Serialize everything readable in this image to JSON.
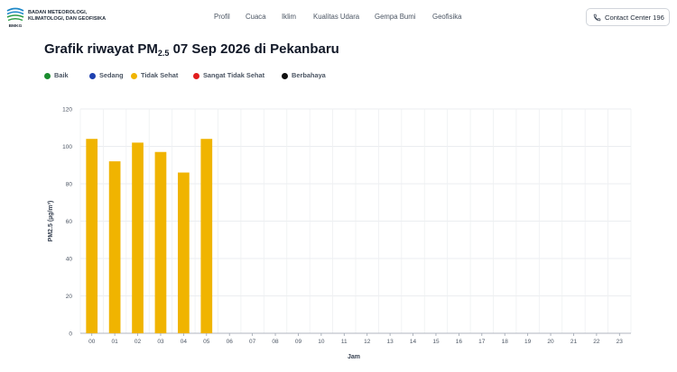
{
  "header": {
    "org_lines": [
      "BADAN METEOROLOGI,",
      "KLIMATOLOGI, DAN GEOFISIKA"
    ],
    "logo_text": "BMKG",
    "nav": [
      "Profil",
      "Cuaca",
      "Iklim",
      "Kualitas Udara",
      "Gempa Bumi",
      "Geofisika"
    ],
    "contact_label": "Contact Center 196"
  },
  "page": {
    "title_prefix": "Grafik riwayat PM",
    "title_sub": "2.5",
    "title_suffix": " 07 Sep 2026 di Pekanbaru"
  },
  "legend": [
    {
      "label": "Baik",
      "color": "#1a8c2e"
    },
    {
      "label": "Sedang",
      "color": "#1e40af"
    },
    {
      "label": "Tidak Sehat",
      "color": "#f0b400"
    },
    {
      "label": "Sangat Tidak Sehat",
      "color": "#e11d1d"
    },
    {
      "label": "Berbahaya",
      "color": "#111111"
    }
  ],
  "chart_data": {
    "type": "bar",
    "categories": [
      "00",
      "01",
      "02",
      "03",
      "04",
      "05",
      "06",
      "07",
      "08",
      "09",
      "10",
      "11",
      "12",
      "13",
      "14",
      "15",
      "16",
      "17",
      "18",
      "19",
      "20",
      "21",
      "22",
      "23"
    ],
    "values": [
      104,
      92,
      102,
      97,
      86,
      104,
      null,
      null,
      null,
      null,
      null,
      null,
      null,
      null,
      null,
      null,
      null,
      null,
      null,
      null,
      null,
      null,
      null,
      null
    ],
    "bar_color": "#f0b400",
    "xlabel": "Jam",
    "ylabel": "PM2.5 (µg/m³)",
    "ylim": [
      0,
      120
    ],
    "yticks": [
      0,
      20,
      40,
      60,
      80,
      100,
      120
    ],
    "grid": true
  }
}
